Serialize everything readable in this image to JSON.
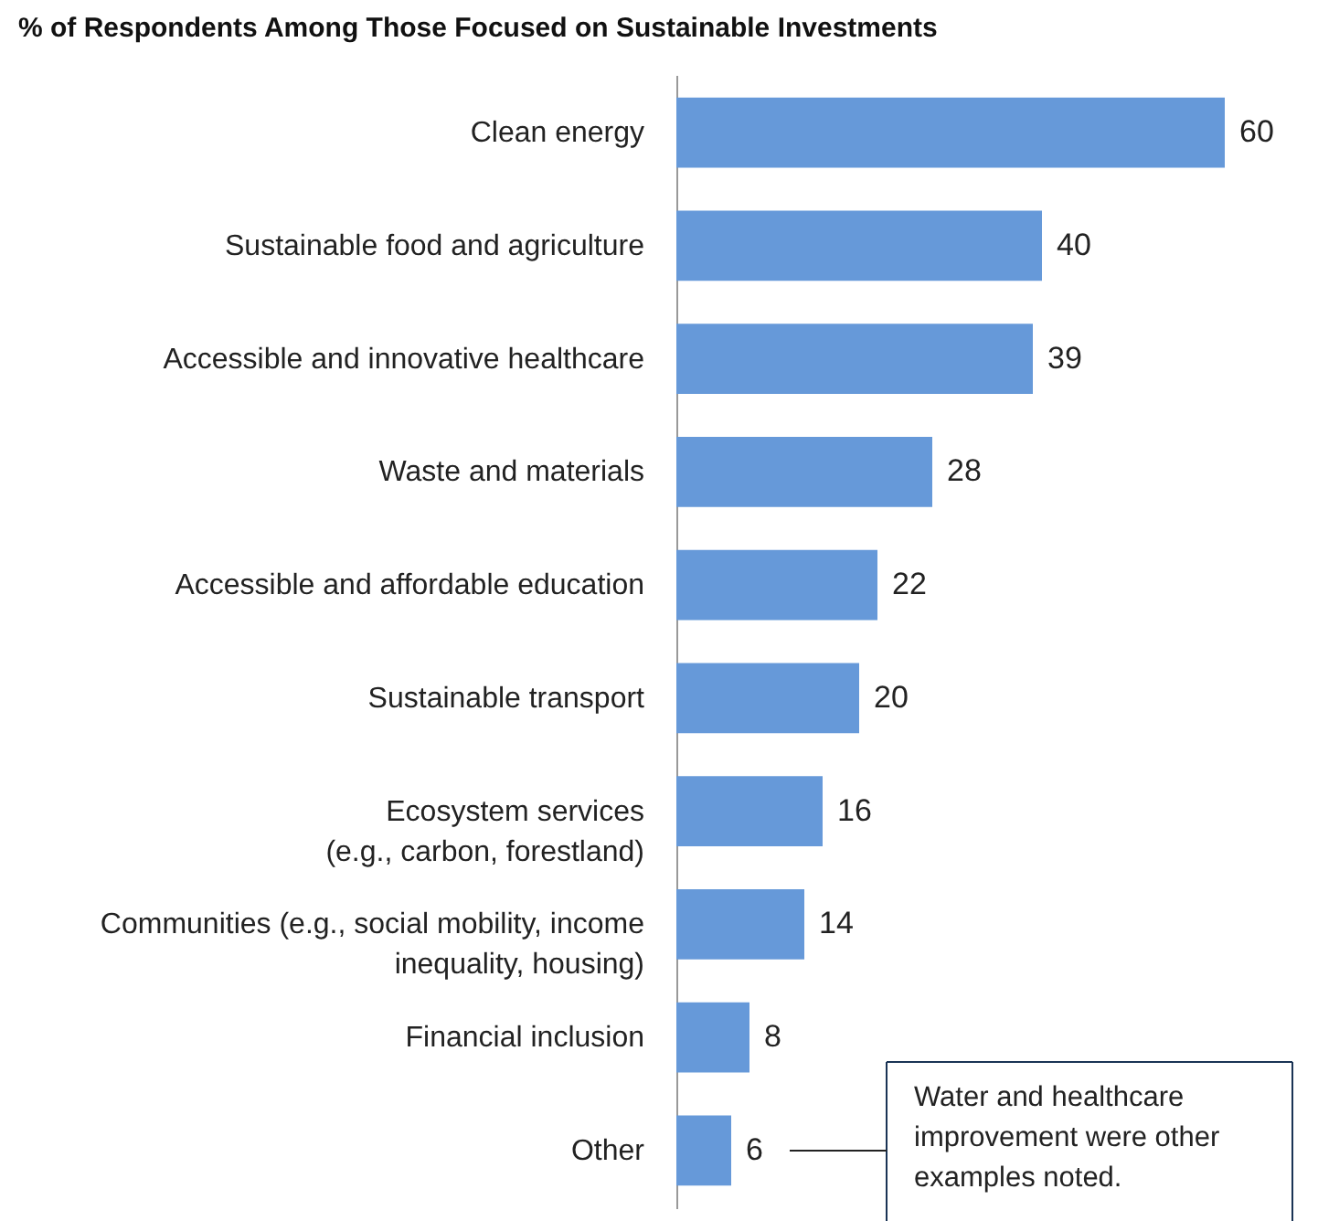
{
  "chart_data": {
    "type": "bar",
    "orientation": "horizontal",
    "title": "% of Respondents Among Those Focused on Sustainable Investments",
    "categories": [
      "Clean energy",
      "Sustainable food and agriculture",
      "Accessible and innovative healthcare",
      "Waste and materials",
      "Accessible and affordable education",
      "Sustainable transport",
      "Ecosystem services\n(e.g., carbon, forestland)",
      "Communities (e.g., social mobility, income\ninequality, housing)",
      "Financial inclusion",
      "Other"
    ],
    "values": [
      60,
      40,
      39,
      28,
      22,
      20,
      16,
      14,
      8,
      6
    ],
    "color": "#6699d9",
    "data_labels": true,
    "annotations": [
      "Water and healthcare improvement were other examples noted."
    ]
  }
}
